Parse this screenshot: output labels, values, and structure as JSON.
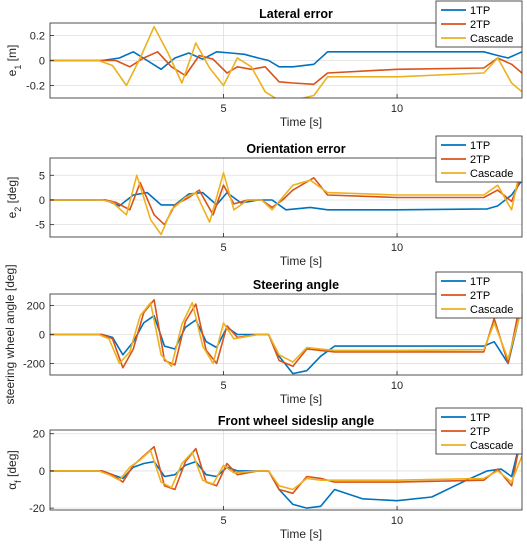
{
  "chart_data": [
    {
      "type": "line",
      "title": "Lateral error",
      "xlabel": "Time [s]",
      "ylabel": "e1 [m]",
      "ylabel_main": "e",
      "ylabel_sub": "1",
      "ylabel_unit": " [m]",
      "xlim": [
        0,
        13.6
      ],
      "ylim": [
        -0.3,
        0.3
      ],
      "xticks": [
        5,
        10
      ],
      "yticks": [
        -0.2,
        0,
        0.2
      ],
      "ytick_labels": [
        "-0.2",
        "0",
        "0.2"
      ],
      "grid": true,
      "legend_position": "top-right",
      "series": [
        {
          "name": "1TP",
          "color": "#0072BD",
          "x": [
            0,
            1.5,
            2,
            2.4,
            2.8,
            3.2,
            3.6,
            4,
            4.4,
            4.8,
            5.2,
            5.6,
            6,
            6.3,
            6.6,
            7,
            7.6,
            8,
            10,
            12.5,
            12.9,
            13.2,
            13.6
          ],
          "y": [
            0,
            0,
            0.02,
            0.07,
            0,
            -0.07,
            0.02,
            0.06,
            0.01,
            0.07,
            0.06,
            0.05,
            0.02,
            0,
            -0.05,
            -0.05,
            -0.03,
            0.07,
            0.07,
            0.07,
            0.04,
            0.02,
            0.07
          ]
        },
        {
          "name": "2TP",
          "color": "#D95319",
          "x": [
            0,
            1.5,
            1.9,
            2.3,
            2.7,
            3.1,
            3.5,
            3.9,
            4.3,
            4.7,
            5.1,
            5.4,
            5.8,
            6.2,
            6.6,
            7,
            7.6,
            8,
            10,
            12.5,
            12.9,
            13.3,
            13.6
          ],
          "y": [
            0,
            0,
            0,
            -0.05,
            0.02,
            0.07,
            -0.05,
            -0.12,
            0.04,
            0.01,
            -0.1,
            -0.05,
            -0.07,
            -0.05,
            -0.17,
            -0.18,
            -0.19,
            -0.1,
            -0.07,
            -0.06,
            0.02,
            -0.03,
            -0.1
          ]
        },
        {
          "name": "Cascade",
          "color": "#EDB120",
          "x": [
            0,
            1.4,
            1.8,
            2.2,
            2.6,
            3,
            3.4,
            3.8,
            4.2,
            4.6,
            5,
            5.4,
            5.8,
            6.2,
            6.6,
            7,
            7.6,
            8,
            10,
            12.5,
            12.9,
            13.3,
            13.6
          ],
          "y": [
            0,
            0,
            -0.04,
            -0.2,
            0.02,
            0.27,
            0.06,
            -0.18,
            0.14,
            -0.06,
            -0.2,
            0.02,
            -0.05,
            -0.25,
            -0.32,
            -0.32,
            -0.28,
            -0.13,
            -0.13,
            -0.1,
            0.02,
            -0.18,
            -0.25
          ]
        }
      ]
    },
    {
      "type": "line",
      "title": "Orientation error",
      "xlabel": "Time [s]",
      "ylabel": "e2 [deg]",
      "ylabel_main": "e",
      "ylabel_sub": "2",
      "ylabel_unit": " [deg]",
      "xlim": [
        0,
        13.6
      ],
      "ylim": [
        -7.5,
        8.5
      ],
      "xticks": [
        5,
        10
      ],
      "yticks": [
        -5,
        0,
        5
      ],
      "ytick_labels": [
        "-5",
        "0",
        "5"
      ],
      "grid": true,
      "legend_position": "top-right",
      "series": [
        {
          "name": "1TP",
          "color": "#0072BD",
          "x": [
            0,
            1.6,
            2,
            2.4,
            2.8,
            3.2,
            3.6,
            4,
            4.4,
            4.8,
            5.1,
            5.5,
            6,
            6.4,
            6.8,
            7.5,
            8,
            10,
            12.6,
            12.9,
            13.3,
            13.6
          ],
          "y": [
            0,
            0,
            -1.2,
            1,
            1.5,
            -1,
            -1,
            1.2,
            1.5,
            -1,
            1.5,
            -0.6,
            0,
            0,
            -2,
            -1.5,
            -2,
            -2,
            -1.8,
            -1.2,
            1,
            4
          ]
        },
        {
          "name": "2TP",
          "color": "#D95319",
          "x": [
            0,
            1.6,
            1.9,
            2.3,
            2.6,
            3,
            3.3,
            3.6,
            4,
            4.3,
            4.7,
            5,
            5.3,
            5.7,
            6.1,
            6.4,
            6.7,
            7,
            7.6,
            8,
            10,
            12.5,
            12.9,
            13.3,
            13.6
          ],
          "y": [
            0,
            0,
            -0.5,
            -2,
            3.5,
            -3,
            -5,
            -1,
            0.5,
            2,
            -3,
            3,
            -0.8,
            0,
            0,
            -1.5,
            0,
            2,
            4.5,
            1,
            0.5,
            0.5,
            2,
            -0.3,
            5
          ]
        },
        {
          "name": "Cascade",
          "color": "#EDB120",
          "x": [
            0,
            1.5,
            1.8,
            2.2,
            2.5,
            2.9,
            3.2,
            3.5,
            3.9,
            4.2,
            4.6,
            5,
            5.3,
            5.7,
            6.1,
            6.4,
            6.7,
            7,
            7.5,
            8,
            10,
            12.5,
            12.9,
            13.3,
            13.6
          ],
          "y": [
            0,
            0,
            -0.5,
            -3,
            5,
            -4,
            -7,
            -2,
            0.5,
            1.5,
            -4.5,
            5.5,
            -2,
            0,
            0,
            -2,
            0.5,
            3,
            4,
            1.5,
            1,
            1,
            3,
            -2,
            8
          ]
        }
      ]
    },
    {
      "type": "line",
      "title": "Steering angle",
      "xlabel": "Time [s]",
      "ylabel": "steering wheel angle  [deg]",
      "xlim": [
        0,
        13.6
      ],
      "ylim": [
        -280,
        280
      ],
      "xticks": [
        5,
        10
      ],
      "yticks": [
        -200,
        0,
        200
      ],
      "ytick_labels": [
        "-200",
        "0",
        "200"
      ],
      "grid": true,
      "legend_position": "top-right",
      "series": [
        {
          "name": "1TP",
          "color": "#0072BD",
          "x": [
            0,
            1.5,
            1.8,
            2.1,
            2.4,
            2.7,
            3,
            3.3,
            3.6,
            3.9,
            4.2,
            4.5,
            4.8,
            5.1,
            5.4,
            6,
            6.3,
            6.6,
            7,
            7.4,
            7.8,
            8.2,
            10,
            12.5,
            12.8,
            13.2,
            13.6
          ],
          "y": [
            0,
            0,
            -20,
            -140,
            -50,
            80,
            130,
            -80,
            -100,
            50,
            100,
            -50,
            -90,
            50,
            0,
            0,
            0,
            -150,
            -270,
            -250,
            -150,
            -80,
            -80,
            -80,
            -50,
            -200,
            200
          ]
        },
        {
          "name": "2TP",
          "color": "#D95319",
          "x": [
            0,
            1.5,
            1.8,
            2.1,
            2.4,
            2.7,
            3,
            3.3,
            3.6,
            3.9,
            4.2,
            4.5,
            4.8,
            5.1,
            5.4,
            6,
            6.3,
            6.6,
            7,
            7.4,
            7.8,
            8.2,
            10,
            12.5,
            12.8,
            13.2,
            13.6
          ],
          "y": [
            0,
            0,
            -30,
            -230,
            -100,
            150,
            240,
            -180,
            -210,
            90,
            210,
            -110,
            -200,
            60,
            -20,
            0,
            0,
            -180,
            -220,
            -100,
            -110,
            -120,
            -120,
            -120,
            110,
            -200,
            280
          ]
        },
        {
          "name": "Cascade",
          "color": "#EDB120",
          "x": [
            0,
            1.4,
            1.7,
            2,
            2.3,
            2.6,
            2.9,
            3.2,
            3.5,
            3.8,
            4.1,
            4.4,
            4.7,
            5,
            5.3,
            6,
            6.3,
            6.6,
            7,
            7.4,
            7.8,
            8.2,
            10,
            12.5,
            12.8,
            13.2,
            13.6
          ],
          "y": [
            0,
            0,
            -30,
            -200,
            -120,
            130,
            220,
            -140,
            -220,
            70,
            220,
            -80,
            -200,
            80,
            -30,
            0,
            0,
            -140,
            -190,
            -90,
            -100,
            -110,
            -110,
            -105,
            80,
            -170,
            190
          ]
        }
      ]
    },
    {
      "type": "line",
      "title": "Front wheel sideslip angle",
      "xlabel": "Time [s]",
      "ylabel": "αf [deg]",
      "ylabel_main": "α",
      "ylabel_sub": "f",
      "ylabel_unit": " [deg]",
      "xlim": [
        0,
        13.6
      ],
      "ylim": [
        -21,
        22
      ],
      "xticks": [
        5,
        10
      ],
      "yticks": [
        -20,
        0,
        20
      ],
      "ytick_labels": [
        "-20",
        "0",
        "20"
      ],
      "grid": true,
      "legend_position": "top-right",
      "series": [
        {
          "name": "1TP",
          "color": "#0072BD",
          "x": [
            0,
            1.5,
            1.8,
            2.1,
            2.4,
            2.7,
            3,
            3.3,
            3.6,
            3.9,
            4.2,
            4.5,
            4.8,
            5.1,
            5.4,
            6,
            6.3,
            6.6,
            7,
            7.4,
            7.8,
            8.2,
            9,
            10,
            11,
            12,
            12.6,
            13,
            13.3,
            13.6
          ],
          "y": [
            0,
            0,
            -2,
            -4,
            2,
            4,
            5,
            -3,
            -2,
            3,
            5,
            -2,
            -3,
            2,
            0,
            0,
            0,
            -10,
            -18,
            -20,
            -19,
            -10,
            -15,
            -16,
            -14,
            -5,
            0,
            1,
            -3,
            20
          ]
        },
        {
          "name": "2TP",
          "color": "#D95319",
          "x": [
            0,
            1.5,
            1.8,
            2.1,
            2.4,
            2.7,
            3,
            3.3,
            3.6,
            3.9,
            4.2,
            4.5,
            4.8,
            5.1,
            5.4,
            6,
            6.3,
            6.6,
            7,
            7.4,
            7.8,
            8.2,
            10,
            12.5,
            12.9,
            13.3,
            13.6
          ],
          "y": [
            0,
            0,
            -2,
            -6,
            3,
            8,
            13,
            -8,
            -10,
            5,
            12,
            -6,
            -8,
            4,
            -2,
            0,
            0,
            -10,
            -12,
            -3,
            -4,
            -6,
            -6,
            -5,
            1,
            -8,
            21
          ]
        },
        {
          "name": "Cascade",
          "color": "#EDB120",
          "x": [
            0,
            1.4,
            1.7,
            2,
            2.3,
            2.6,
            2.9,
            3.2,
            3.5,
            3.8,
            4.1,
            4.4,
            4.7,
            5,
            5.3,
            6,
            6.3,
            6.6,
            7,
            7.4,
            7.8,
            8.2,
            10,
            12.5,
            12.9,
            13.3,
            13.6
          ],
          "y": [
            0,
            0,
            -2,
            -5,
            2,
            6,
            11,
            -6,
            -9,
            4,
            10,
            -5,
            -7,
            3,
            -1,
            0,
            0,
            -8,
            -10,
            -4,
            -5,
            -5,
            -5,
            -4,
            0,
            -6,
            8
          ]
        }
      ]
    }
  ]
}
